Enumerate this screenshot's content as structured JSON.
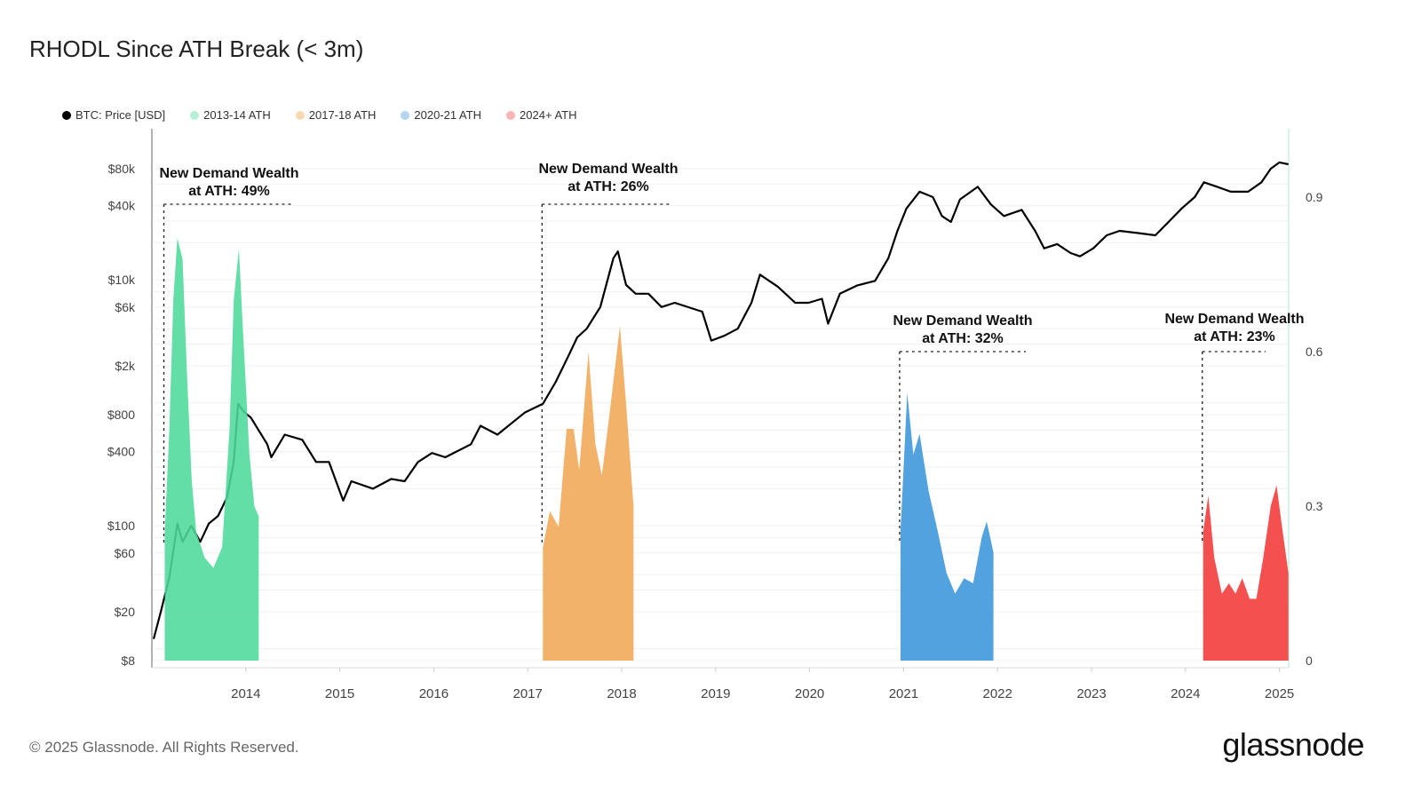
{
  "title": "RHODL Since ATH Break (< 3m)",
  "footer": "© 2025 Glassnode. All Rights Reserved.",
  "brand": "glassnode",
  "legend": [
    {
      "label": "BTC: Price [USD]",
      "color": "#000000"
    },
    {
      "label": "2013-14 ATH",
      "color": "#b6eed6"
    },
    {
      "label": "2017-18 ATH",
      "color": "#f8d9b2"
    },
    {
      "label": "2020-21 ATH",
      "color": "#b3d7f2"
    },
    {
      "label": "2024+ ATH",
      "color": "#fbb5b5"
    }
  ],
  "chart_data": {
    "type": "line+area",
    "title": "RHODL Since ATH Break (< 3m)",
    "x_axis": {
      "type": "date",
      "ticks": [
        "2014",
        "2015",
        "2016",
        "2017",
        "2018",
        "2019",
        "2020",
        "2021",
        "2022",
        "2023",
        "2024",
        "2025"
      ],
      "range": [
        "2013-01-01",
        "2025-02-10"
      ]
    },
    "y_left": {
      "scale": "log",
      "ticks": [
        "$8",
        "$20",
        "$60",
        "$100",
        "$400",
        "$800",
        "$2k",
        "$6k",
        "$10k",
        "$40k",
        "$80k"
      ],
      "tick_values": [
        8,
        20,
        60,
        100,
        400,
        800,
        2000,
        6000,
        10000,
        40000,
        80000
      ],
      "range": [
        8,
        80000
      ]
    },
    "y_right": {
      "scale": "linear",
      "ticks": [
        "0",
        "0.3",
        "0.6",
        "0.9"
      ],
      "tick_values": [
        0,
        0.3,
        0.6,
        0.9
      ],
      "range": [
        0,
        1.05
      ]
    },
    "grid": true,
    "legend_position": "top-left",
    "price_series": {
      "name": "BTC: Price [USD]",
      "color": "#000000",
      "points": [
        [
          "2013-01-08",
          12
        ],
        [
          "2013-02-05",
          20
        ],
        [
          "2013-03-10",
          38
        ],
        [
          "2013-04-10",
          104
        ],
        [
          "2013-04-30",
          74
        ],
        [
          "2013-06-03",
          100
        ],
        [
          "2013-07-08",
          74
        ],
        [
          "2013-08-10",
          104
        ],
        [
          "2013-09-15",
          120
        ],
        [
          "2013-10-20",
          170
        ],
        [
          "2013-11-15",
          330
        ],
        [
          "2013-12-02",
          980
        ],
        [
          "2013-12-28",
          830
        ],
        [
          "2014-01-20",
          760
        ],
        [
          "2014-03-25",
          460
        ],
        [
          "2014-04-10",
          360
        ],
        [
          "2014-06-01",
          550
        ],
        [
          "2014-08-08",
          500
        ],
        [
          "2014-10-01",
          330
        ],
        [
          "2014-11-20",
          330
        ],
        [
          "2015-01-14",
          160
        ],
        [
          "2015-02-15",
          230
        ],
        [
          "2015-05-10",
          200
        ],
        [
          "2015-07-20",
          240
        ],
        [
          "2015-09-10",
          230
        ],
        [
          "2015-11-01",
          330
        ],
        [
          "2015-12-25",
          390
        ],
        [
          "2016-02-15",
          360
        ],
        [
          "2016-05-25",
          460
        ],
        [
          "2016-07-01",
          650
        ],
        [
          "2016-09-05",
          550
        ],
        [
          "2016-12-20",
          830
        ],
        [
          "2017-03-01",
          980
        ],
        [
          "2017-04-20",
          1480
        ],
        [
          "2017-06-10",
          2450
        ],
        [
          "2017-07-12",
          3400
        ],
        [
          "2017-08-18",
          4000
        ],
        [
          "2017-10-10",
          6000
        ],
        [
          "2017-11-30",
          15000
        ],
        [
          "2017-12-17",
          17000
        ],
        [
          "2018-01-18",
          9100
        ],
        [
          "2018-02-24",
          7700
        ],
        [
          "2018-04-15",
          7700
        ],
        [
          "2018-06-05",
          6000
        ],
        [
          "2018-07-26",
          6500
        ],
        [
          "2018-11-10",
          5500
        ],
        [
          "2018-12-15",
          3200
        ],
        [
          "2019-02-03",
          3500
        ],
        [
          "2019-03-28",
          4000
        ],
        [
          "2019-05-20",
          6500
        ],
        [
          "2019-06-22",
          11000
        ],
        [
          "2019-08-30",
          8800
        ],
        [
          "2019-11-06",
          6500
        ],
        [
          "2019-12-28",
          6500
        ],
        [
          "2020-02-18",
          7000
        ],
        [
          "2020-03-13",
          4400
        ],
        [
          "2020-04-28",
          7700
        ],
        [
          "2020-07-05",
          9000
        ],
        [
          "2020-09-12",
          9800
        ],
        [
          "2020-11-03",
          15000
        ],
        [
          "2020-12-08",
          25000
        ],
        [
          "2021-01-12",
          38000
        ],
        [
          "2021-03-04",
          52000
        ],
        [
          "2021-04-25",
          47000
        ],
        [
          "2021-05-30",
          33000
        ],
        [
          "2021-07-04",
          29500
        ],
        [
          "2021-08-08",
          45000
        ],
        [
          "2021-10-16",
          57000
        ],
        [
          "2021-12-06",
          41000
        ],
        [
          "2022-01-26",
          33000
        ],
        [
          "2022-04-05",
          37000
        ],
        [
          "2022-05-27",
          25000
        ],
        [
          "2022-07-01",
          18000
        ],
        [
          "2022-08-21",
          19500
        ],
        [
          "2022-10-12",
          16500
        ],
        [
          "2022-11-17",
          15500
        ],
        [
          "2023-01-08",
          18000
        ],
        [
          "2023-03-01",
          23000
        ],
        [
          "2023-04-20",
          25000
        ],
        [
          "2023-06-28",
          24000
        ],
        [
          "2023-09-06",
          23000
        ],
        [
          "2023-10-27",
          29500
        ],
        [
          "2023-12-17",
          38000
        ],
        [
          "2024-02-06",
          47000
        ],
        [
          "2024-03-13",
          62000
        ],
        [
          "2024-05-04",
          57000
        ],
        [
          "2024-06-25",
          52000
        ],
        [
          "2024-09-01",
          52000
        ],
        [
          "2024-10-23",
          62000
        ],
        [
          "2024-11-28",
          80000
        ],
        [
          "2025-01-01",
          90000
        ],
        [
          "2025-02-05",
          87000
        ]
      ]
    },
    "rhodl_series": [
      {
        "name": "2013-14 ATH",
        "color": "#4fd99b",
        "annotation": [
          "New Demand Wealth",
          "at ATH: 49%"
        ],
        "points": [
          [
            "2013-02-20",
            0.25
          ],
          [
            "2013-03-10",
            0.45
          ],
          [
            "2013-03-25",
            0.7
          ],
          [
            "2013-04-10",
            0.82
          ],
          [
            "2013-04-30",
            0.78
          ],
          [
            "2013-05-18",
            0.55
          ],
          [
            "2013-06-05",
            0.35
          ],
          [
            "2013-06-22",
            0.25
          ],
          [
            "2013-07-25",
            0.2
          ],
          [
            "2013-08-28",
            0.18
          ],
          [
            "2013-10-01",
            0.22
          ],
          [
            "2013-10-30",
            0.45
          ],
          [
            "2013-11-15",
            0.7
          ],
          [
            "2013-12-05",
            0.8
          ],
          [
            "2013-12-20",
            0.65
          ],
          [
            "2014-01-15",
            0.4
          ],
          [
            "2014-02-03",
            0.3
          ],
          [
            "2014-02-20",
            0.28
          ]
        ]
      },
      {
        "name": "2017-18 ATH",
        "color": "#f0a755",
        "annotation": [
          "New Demand Wealth",
          "at ATH: 26%"
        ],
        "points": [
          [
            "2017-03-01",
            0.22
          ],
          [
            "2017-03-28",
            0.29
          ],
          [
            "2017-05-01",
            0.26
          ],
          [
            "2017-06-01",
            0.45
          ],
          [
            "2017-06-28",
            0.45
          ],
          [
            "2017-07-20",
            0.37
          ],
          [
            "2017-08-25",
            0.6
          ],
          [
            "2017-09-21",
            0.42
          ],
          [
            "2017-10-16",
            0.36
          ],
          [
            "2017-11-15",
            0.48
          ],
          [
            "2017-12-25",
            0.65
          ],
          [
            "2018-01-18",
            0.5
          ],
          [
            "2018-02-16",
            0.3
          ]
        ]
      },
      {
        "name": "2020-21 ATH",
        "color": "#3a95db",
        "annotation": [
          "New Demand Wealth",
          "at ATH: 32%"
        ],
        "points": [
          [
            "2020-12-20",
            0.25
          ],
          [
            "2021-01-15",
            0.52
          ],
          [
            "2021-02-08",
            0.4
          ],
          [
            "2021-03-04",
            0.44
          ],
          [
            "2021-04-08",
            0.33
          ],
          [
            "2021-05-14",
            0.25
          ],
          [
            "2021-06-17",
            0.17
          ],
          [
            "2021-07-20",
            0.13
          ],
          [
            "2021-08-24",
            0.16
          ],
          [
            "2021-09-28",
            0.15
          ],
          [
            "2021-11-01",
            0.24
          ],
          [
            "2021-11-20",
            0.27
          ],
          [
            "2021-12-16",
            0.21
          ]
        ]
      },
      {
        "name": "2024+ ATH",
        "color": "#f43838",
        "annotation": [
          "New Demand Wealth",
          "at ATH: 23%"
        ],
        "points": [
          [
            "2024-03-10",
            0.25
          ],
          [
            "2024-03-30",
            0.32
          ],
          [
            "2024-04-22",
            0.2
          ],
          [
            "2024-05-22",
            0.13
          ],
          [
            "2024-06-18",
            0.15
          ],
          [
            "2024-07-14",
            0.13
          ],
          [
            "2024-08-09",
            0.16
          ],
          [
            "2024-09-07",
            0.12
          ],
          [
            "2024-10-03",
            0.12
          ],
          [
            "2024-10-30",
            0.2
          ],
          [
            "2024-11-28",
            0.3
          ],
          [
            "2024-12-21",
            0.34
          ],
          [
            "2025-01-11",
            0.26
          ],
          [
            "2025-02-05",
            0.17
          ]
        ]
      }
    ]
  }
}
